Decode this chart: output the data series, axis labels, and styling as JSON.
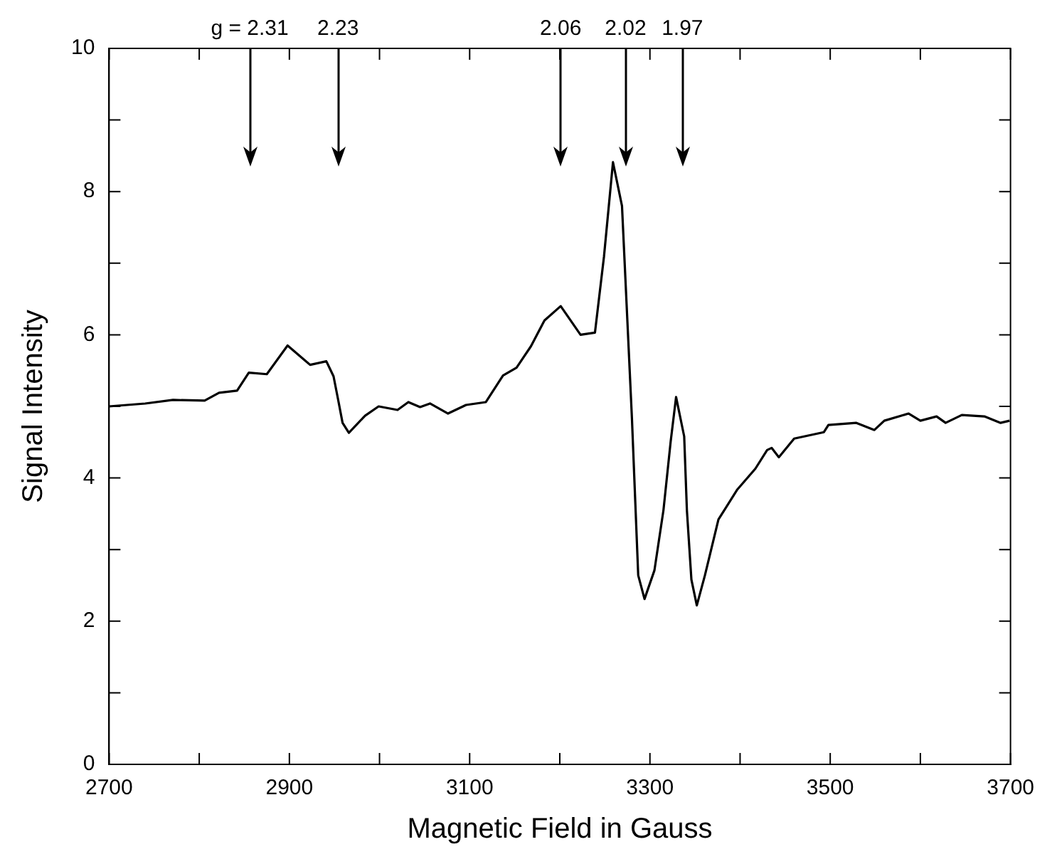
{
  "chart_data": {
    "type": "line",
    "xlabel": "Magnetic Field in Gauss",
    "ylabel": "Signal Intensity",
    "x": [
      2700,
      2740,
      2771,
      2806,
      2822,
      2842,
      2855,
      2875,
      2898,
      2923,
      2941,
      2949,
      2954,
      2959,
      2966,
      2984,
      2999,
      3020,
      3032,
      3045,
      3056,
      3076,
      3096,
      3118,
      3137,
      3152,
      3168,
      3183,
      3201,
      3223,
      3239,
      3249,
      3259,
      3269,
      3280,
      3287,
      3294,
      3305,
      3315,
      3323,
      3329,
      3338,
      3341,
      3346,
      3352,
      3361,
      3376,
      3397,
      3417,
      3430,
      3435,
      3443,
      3460,
      3493,
      3498,
      3529,
      3549,
      3560,
      3587,
      3600,
      3618,
      3628,
      3646,
      3671,
      3689,
      3699
    ],
    "series": [
      {
        "color": "#000000",
        "values": [
          5.0,
          5.04,
          5.09,
          5.08,
          5.19,
          5.22,
          5.47,
          5.45,
          5.85,
          5.58,
          5.63,
          5.42,
          5.1,
          4.77,
          4.63,
          4.87,
          5.0,
          4.95,
          5.06,
          4.99,
          5.04,
          4.9,
          5.02,
          5.06,
          5.43,
          5.54,
          5.84,
          6.2,
          6.4,
          6.0,
          6.03,
          7.09,
          8.41,
          7.8,
          4.84,
          2.64,
          2.31,
          2.71,
          3.55,
          4.51,
          5.13,
          4.58,
          3.55,
          2.58,
          2.22,
          2.64,
          3.42,
          3.84,
          4.13,
          4.39,
          4.42,
          4.29,
          4.55,
          4.64,
          4.74,
          4.77,
          4.67,
          4.8,
          4.9,
          4.8,
          4.86,
          4.77,
          4.88,
          4.86,
          4.77,
          4.8
        ]
      }
    ],
    "xlim": [
      2700,
      3700
    ],
    "xticks": [
      2700,
      {
        "value": 2800,
        "label": null
      },
      2900,
      {
        "value": 3000,
        "label": null
      },
      3100,
      {
        "value": 3200,
        "label": null
      },
      3300,
      {
        "value": 3400,
        "label": null
      },
      3500,
      {
        "value": 3600,
        "label": null
      },
      3700
    ],
    "ylim": [
      0,
      10
    ],
    "yticks": [
      0,
      {
        "value": 1,
        "label": null
      },
      2,
      {
        "value": 3,
        "label": null
      },
      4,
      {
        "value": 5,
        "label": null
      },
      6,
      {
        "value": 7,
        "label": null
      },
      8,
      {
        "value": 9,
        "label": null
      },
      10
    ],
    "annotations": [
      {
        "text": "g = 2.31",
        "x": 2856
      },
      {
        "text": "2.23",
        "x": 2954
      },
      {
        "text": "2.06",
        "x": 3201
      },
      {
        "text": "2.02",
        "x": 3273
      },
      {
        "text": "1.97",
        "x": 3336
      }
    ],
    "grid": false,
    "legend": false,
    "marker": "none",
    "line_style": "solid"
  }
}
